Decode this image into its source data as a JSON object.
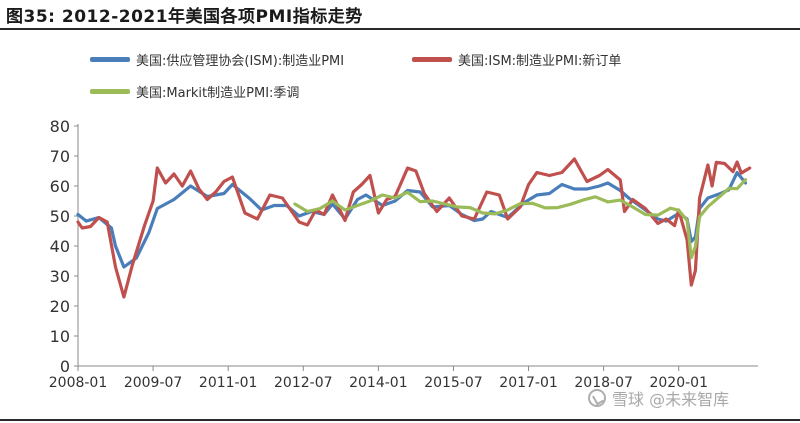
{
  "title": "图35:  2012-2021年美国各项PMI指标走势",
  "watermark": "雪球 @未来智库",
  "colors": {
    "ism_pmi": "#4a7ebb",
    "ism_new_orders": "#c0504d",
    "markit_pmi": "#9bbb59",
    "axis": "#888888",
    "text": "#333333"
  },
  "chart_data": {
    "type": "line",
    "x_ticks": [
      "2008-01",
      "2009-07",
      "2011-01",
      "2012-07",
      "2014-01",
      "2015-07",
      "2017-01",
      "2018-07",
      "2020-01"
    ],
    "x_range": [
      "2008-01",
      "2021-06"
    ],
    "ylim": [
      0,
      80
    ],
    "y_ticks": [
      0,
      10,
      20,
      30,
      40,
      50,
      60,
      70,
      80
    ],
    "grid": false,
    "legend_position": "top",
    "series": [
      {
        "name": "美国:供应管理协会(ISM):制造业PMI",
        "color": "#4a7ebb",
        "points": [
          [
            "2008-01",
            50.5
          ],
          [
            "2008-03",
            48.3
          ],
          [
            "2008-06",
            49.5
          ],
          [
            "2008-09",
            46
          ],
          [
            "2008-10",
            40
          ],
          [
            "2008-12",
            33
          ],
          [
            "2009-03",
            36
          ],
          [
            "2009-06",
            44.5
          ],
          [
            "2009-08",
            52.5
          ],
          [
            "2009-12",
            55.5
          ],
          [
            "2010-04",
            60
          ],
          [
            "2010-08",
            56.5
          ],
          [
            "2010-12",
            57.5
          ],
          [
            "2011-02",
            60.5
          ],
          [
            "2011-06",
            56
          ],
          [
            "2011-09",
            52
          ],
          [
            "2011-12",
            53.5
          ],
          [
            "2012-03",
            53.5
          ],
          [
            "2012-06",
            50
          ],
          [
            "2012-09",
            51.5
          ],
          [
            "2012-12",
            50.5
          ],
          [
            "2013-02",
            54
          ],
          [
            "2013-05",
            49
          ],
          [
            "2013-08",
            55.5
          ],
          [
            "2013-10",
            57
          ],
          [
            "2014-02",
            53.5
          ],
          [
            "2014-05",
            55
          ],
          [
            "2014-08",
            58.5
          ],
          [
            "2014-11",
            58
          ],
          [
            "2015-02",
            53
          ],
          [
            "2015-06",
            53.5
          ],
          [
            "2015-09",
            50.5
          ],
          [
            "2015-12",
            48.5
          ],
          [
            "2016-02",
            49
          ],
          [
            "2016-04",
            51.5
          ],
          [
            "2016-08",
            49.5
          ],
          [
            "2016-12",
            54.5
          ],
          [
            "2017-03",
            57
          ],
          [
            "2017-06",
            57.5
          ],
          [
            "2017-09",
            60.5
          ],
          [
            "2017-12",
            59
          ],
          [
            "2018-03",
            59
          ],
          [
            "2018-06",
            60
          ],
          [
            "2018-08",
            61
          ],
          [
            "2018-11",
            58.5
          ],
          [
            "2019-01",
            56
          ],
          [
            "2019-05",
            52
          ],
          [
            "2019-08",
            49
          ],
          [
            "2019-10",
            48.3
          ],
          [
            "2020-01",
            50.9
          ],
          [
            "2020-02",
            50
          ],
          [
            "2020-03",
            49
          ],
          [
            "2020-04",
            41.5
          ],
          [
            "2020-05",
            43
          ],
          [
            "2020-06",
            52.5
          ],
          [
            "2020-08",
            56
          ],
          [
            "2020-11",
            57.5
          ],
          [
            "2021-01",
            58.7
          ],
          [
            "2021-03",
            64.5
          ],
          [
            "2021-05",
            61
          ]
        ]
      },
      {
        "name": "美国:ISM:制造业PMI:新订单",
        "color": "#c0504d",
        "points": [
          [
            "2008-01",
            48
          ],
          [
            "2008-02",
            46
          ],
          [
            "2008-04",
            46.5
          ],
          [
            "2008-06",
            49.5
          ],
          [
            "2008-08",
            48
          ],
          [
            "2008-10",
            33
          ],
          [
            "2008-12",
            23
          ],
          [
            "2009-02",
            33.5
          ],
          [
            "2009-05",
            47
          ],
          [
            "2009-07",
            55
          ],
          [
            "2009-08",
            66
          ],
          [
            "2009-10",
            61
          ],
          [
            "2009-12",
            64
          ],
          [
            "2010-02",
            60
          ],
          [
            "2010-04",
            65
          ],
          [
            "2010-06",
            59
          ],
          [
            "2010-08",
            55.5
          ],
          [
            "2010-10",
            58
          ],
          [
            "2010-12",
            61.5
          ],
          [
            "2011-02",
            63
          ],
          [
            "2011-05",
            51
          ],
          [
            "2011-08",
            49
          ],
          [
            "2011-11",
            57
          ],
          [
            "2012-02",
            56
          ],
          [
            "2012-06",
            48
          ],
          [
            "2012-08",
            47
          ],
          [
            "2012-10",
            52
          ],
          [
            "2012-12",
            50.5
          ],
          [
            "2013-02",
            57
          ],
          [
            "2013-05",
            48.5
          ],
          [
            "2013-07",
            58
          ],
          [
            "2013-09",
            60.5
          ],
          [
            "2013-11",
            63.5
          ],
          [
            "2014-01",
            51
          ],
          [
            "2014-03",
            55.5
          ],
          [
            "2014-05",
            56.5
          ],
          [
            "2014-08",
            66
          ],
          [
            "2014-10",
            65
          ],
          [
            "2014-12",
            57.5
          ],
          [
            "2015-03",
            51.5
          ],
          [
            "2015-06",
            56
          ],
          [
            "2015-09",
            50
          ],
          [
            "2015-12",
            49
          ],
          [
            "2016-03",
            58
          ],
          [
            "2016-06",
            57
          ],
          [
            "2016-08",
            49
          ],
          [
            "2016-11",
            53
          ],
          [
            "2017-01",
            60.5
          ],
          [
            "2017-03",
            64.5
          ],
          [
            "2017-06",
            63.5
          ],
          [
            "2017-09",
            64.5
          ],
          [
            "2017-12",
            69
          ],
          [
            "2018-03",
            61.5
          ],
          [
            "2018-06",
            63.5
          ],
          [
            "2018-08",
            65.5
          ],
          [
            "2018-11",
            62
          ],
          [
            "2018-12",
            51.5
          ],
          [
            "2019-02",
            55.5
          ],
          [
            "2019-05",
            52.5
          ],
          [
            "2019-08",
            47.5
          ],
          [
            "2019-10",
            49
          ],
          [
            "2019-12",
            46.8
          ],
          [
            "2020-01",
            52
          ],
          [
            "2020-03",
            42
          ],
          [
            "2020-04",
            27
          ],
          [
            "2020-05",
            31.8
          ],
          [
            "2020-06",
            56
          ],
          [
            "2020-08",
            67
          ],
          [
            "2020-09",
            60
          ],
          [
            "2020-10",
            67.9
          ],
          [
            "2020-12",
            67.5
          ],
          [
            "2021-02",
            64.8
          ],
          [
            "2021-03",
            68
          ],
          [
            "2021-04",
            64.3
          ],
          [
            "2021-06",
            66
          ]
        ]
      },
      {
        "name": "美国:Markit制造业PMI:季调",
        "color": "#9bbb59",
        "points": [
          [
            "2012-05",
            54
          ],
          [
            "2012-08",
            51.5
          ],
          [
            "2012-11",
            52.5
          ],
          [
            "2013-02",
            55
          ],
          [
            "2013-05",
            52
          ],
          [
            "2013-08",
            53.5
          ],
          [
            "2013-11",
            55
          ],
          [
            "2014-02",
            57
          ],
          [
            "2014-05",
            56
          ],
          [
            "2014-08",
            57.9
          ],
          [
            "2014-11",
            54.8
          ],
          [
            "2015-02",
            55
          ],
          [
            "2015-05",
            54
          ],
          [
            "2015-08",
            53
          ],
          [
            "2015-11",
            52.8
          ],
          [
            "2016-02",
            51
          ],
          [
            "2016-05",
            50.7
          ],
          [
            "2016-08",
            52
          ],
          [
            "2016-11",
            54.1
          ],
          [
            "2017-02",
            54.2
          ],
          [
            "2017-05",
            52.7
          ],
          [
            "2017-08",
            52.8
          ],
          [
            "2017-11",
            53.9
          ],
          [
            "2018-02",
            55.3
          ],
          [
            "2018-05",
            56.4
          ],
          [
            "2018-08",
            54.7
          ],
          [
            "2018-11",
            55.3
          ],
          [
            "2019-02",
            53
          ],
          [
            "2019-05",
            50.5
          ],
          [
            "2019-08",
            50.3
          ],
          [
            "2019-11",
            52.6
          ],
          [
            "2020-01",
            51.9
          ],
          [
            "2020-03",
            48.5
          ],
          [
            "2020-04",
            36.1
          ],
          [
            "2020-05",
            39.8
          ],
          [
            "2020-06",
            49.8
          ],
          [
            "2020-08",
            53.1
          ],
          [
            "2020-11",
            56.7
          ],
          [
            "2021-01",
            59.2
          ],
          [
            "2021-03",
            59.1
          ],
          [
            "2021-05",
            62.1
          ]
        ]
      }
    ]
  }
}
